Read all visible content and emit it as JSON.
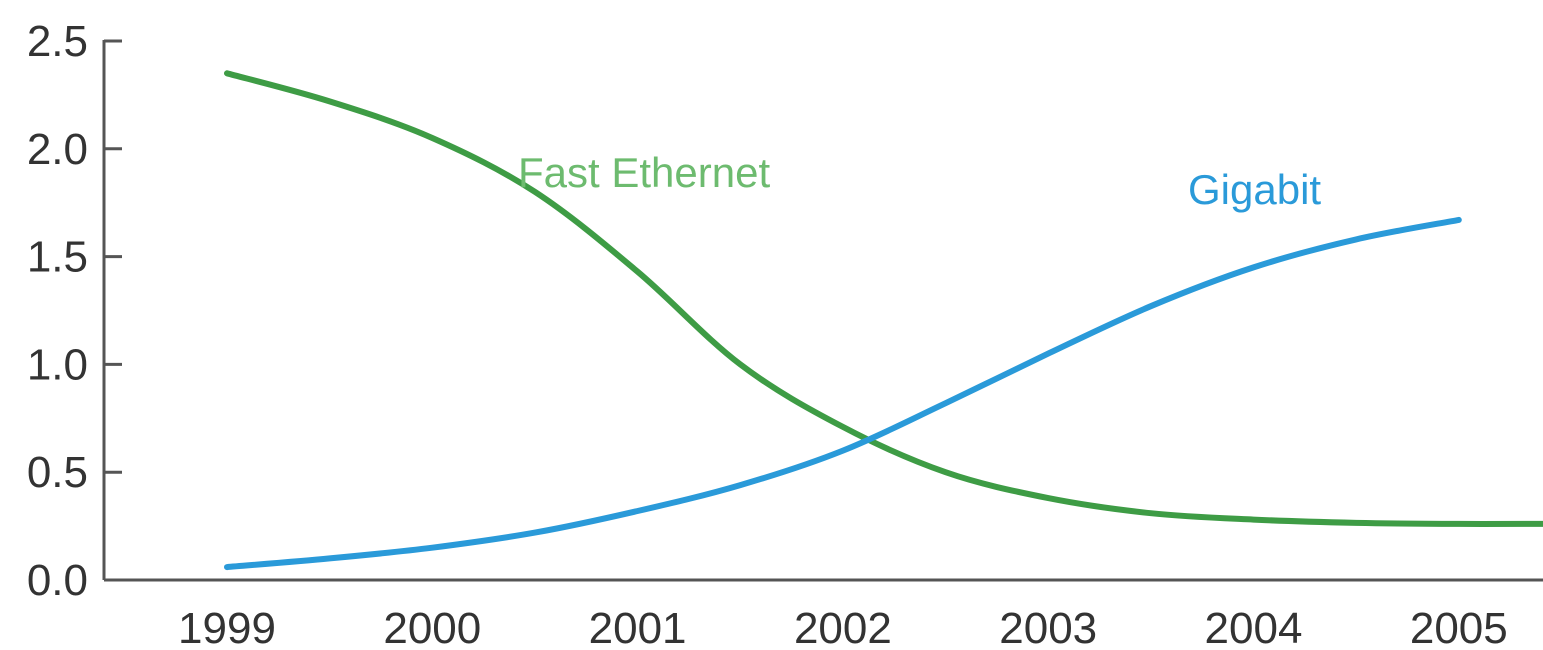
{
  "chart_data": {
    "type": "line",
    "title": "",
    "xlabel": "",
    "ylabel": "",
    "x": [
      1999,
      1999.5,
      2000,
      2000.5,
      2001,
      2001.5,
      2002,
      2002.5,
      2003,
      2003.5,
      2004,
      2004.5,
      2005,
      2005.5
    ],
    "xticks": [
      1999,
      2000,
      2001,
      2002,
      2003,
      2004,
      2005
    ],
    "ylim": [
      0.0,
      2.5
    ],
    "yticks": [
      0.0,
      0.5,
      1.0,
      1.5,
      2.0,
      2.5
    ],
    "ytick_labels": [
      "0.0",
      "0.5",
      "1.0",
      "1.5",
      "2.0",
      "2.5"
    ],
    "grid": false,
    "legend": "inline-labels",
    "series": [
      {
        "name": "Fast Ethernet",
        "color": "#3e9c45",
        "values": [
          2.35,
          2.22,
          2.05,
          1.8,
          1.43,
          1.0,
          0.71,
          0.5,
          0.38,
          0.31,
          0.28,
          0.265,
          0.26,
          0.26
        ]
      },
      {
        "name": "Gigabit",
        "color": "#2a9ad9",
        "values": [
          0.06,
          0.1,
          0.15,
          0.22,
          0.32,
          0.44,
          0.6,
          0.82,
          1.05,
          1.27,
          1.45,
          1.58,
          1.67,
          null
        ]
      }
    ]
  }
}
